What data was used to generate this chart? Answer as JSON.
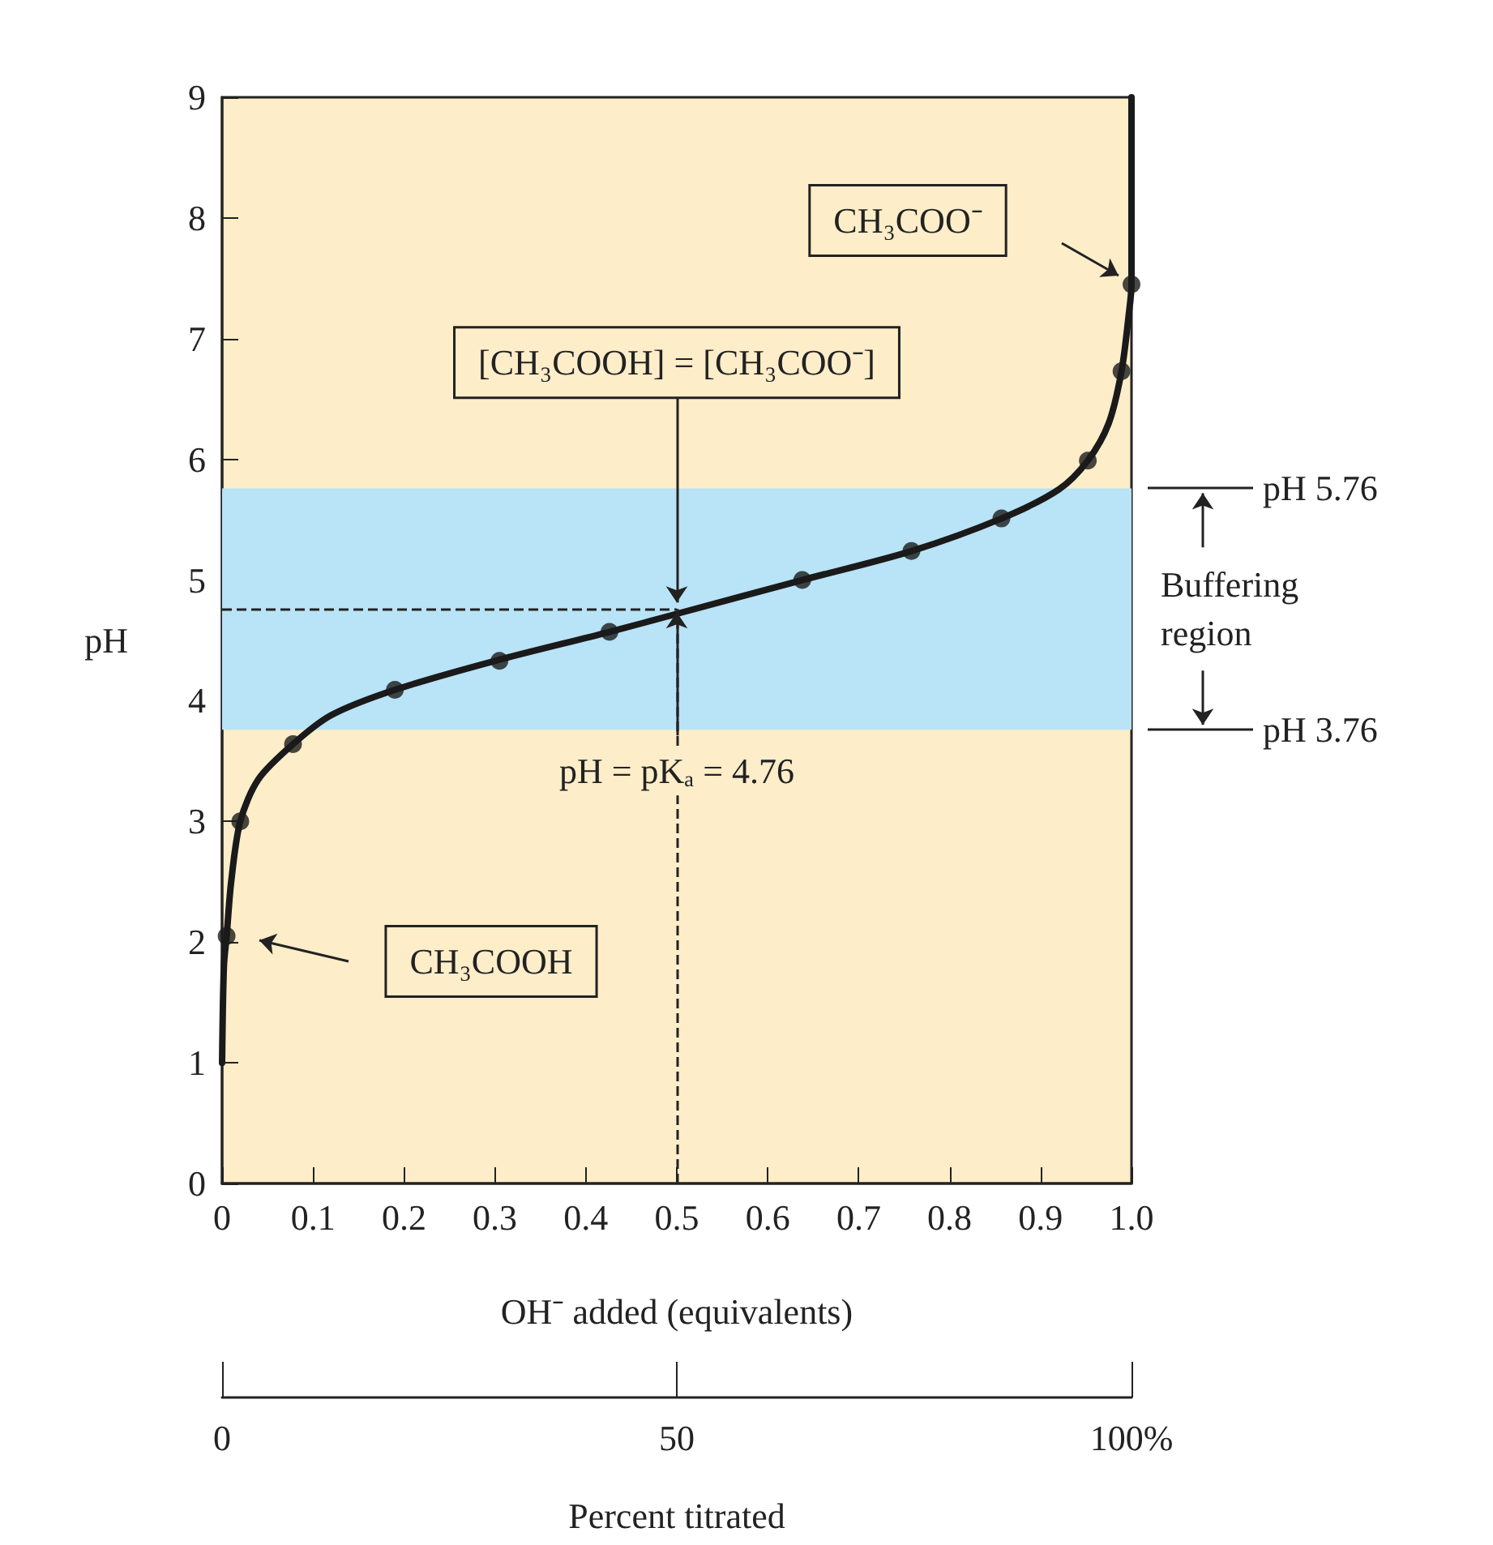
{
  "chart_data": {
    "type": "line",
    "xlabel": "OH⁻ added (equivalents)",
    "ylabel": "pH",
    "x2label": "Percent titrated",
    "xlim": [
      0,
      1
    ],
    "xticks": [
      0,
      0.1,
      0.2,
      0.3,
      0.4,
      0.5,
      0.6,
      0.7,
      0.8,
      0.9,
      {
        "value": 1,
        "label": "1.0"
      }
    ],
    "ylim": [
      0,
      9
    ],
    "yticks": [
      0,
      1,
      2,
      3,
      4,
      5,
      6,
      7,
      8,
      9
    ],
    "x2lim": [
      0,
      100
    ],
    "x2ticks": [
      0,
      50,
      {
        "value": 100,
        "label": "100%"
      }
    ],
    "series": [
      {
        "color": "#1a1a1a",
        "marker": "none",
        "x": [
          0,
          0.002,
          0.005,
          0.01,
          0.02,
          0.04,
          0.078,
          0.12,
          0.19,
          0.3,
          0.426,
          0.5,
          0.638,
          0.758,
          0.857,
          0.92,
          0.952,
          0.975,
          0.989,
          0.997,
          1.0,
          1.0
        ],
        "values": [
          1.0,
          1.8,
          2.05,
          2.5,
          3.0,
          3.35,
          3.64,
          3.88,
          4.09,
          4.33,
          4.57,
          4.72,
          5.0,
          5.24,
          5.51,
          5.75,
          5.99,
          6.3,
          6.73,
          7.2,
          7.45,
          9.0
        ]
      },
      {
        "type": "scatter",
        "color": "#1a1a1a",
        "marker": "circle",
        "x": [
          0.005,
          0.02,
          0.078,
          0.19,
          0.305,
          0.426,
          0.638,
          0.758,
          0.857,
          0.952,
          0.989,
          1.0
        ],
        "values": [
          2.05,
          3.0,
          3.64,
          4.09,
          4.33,
          4.57,
          5.0,
          5.24,
          5.51,
          5.99,
          6.73,
          7.45
        ]
      }
    ],
    "bands": [
      {
        "axis": "y",
        "from": 3.76,
        "to": 5.76,
        "label": "Buffering region",
        "color": "#b9e3f6"
      }
    ],
    "ref_lines": [
      {
        "axis": "y",
        "value": 5.76,
        "label": "pH 5.76"
      },
      {
        "axis": "y",
        "value": 3.76,
        "label": "pH 3.76"
      },
      {
        "axis": "y",
        "value": 4.76,
        "line_style": "dashed"
      },
      {
        "axis": "x",
        "value": 0.5,
        "line_style": "dashed"
      }
    ],
    "annotations": [
      {
        "text": "[CH₃COOH] = [CH₃COO⁻]",
        "x": 0.5,
        "y": 4.76
      },
      {
        "text": "pH = pKₐ = 4.76",
        "x": 0.5,
        "y": 4.76
      },
      "CH₃COO⁻",
      "CH₃COOH"
    ]
  }
}
